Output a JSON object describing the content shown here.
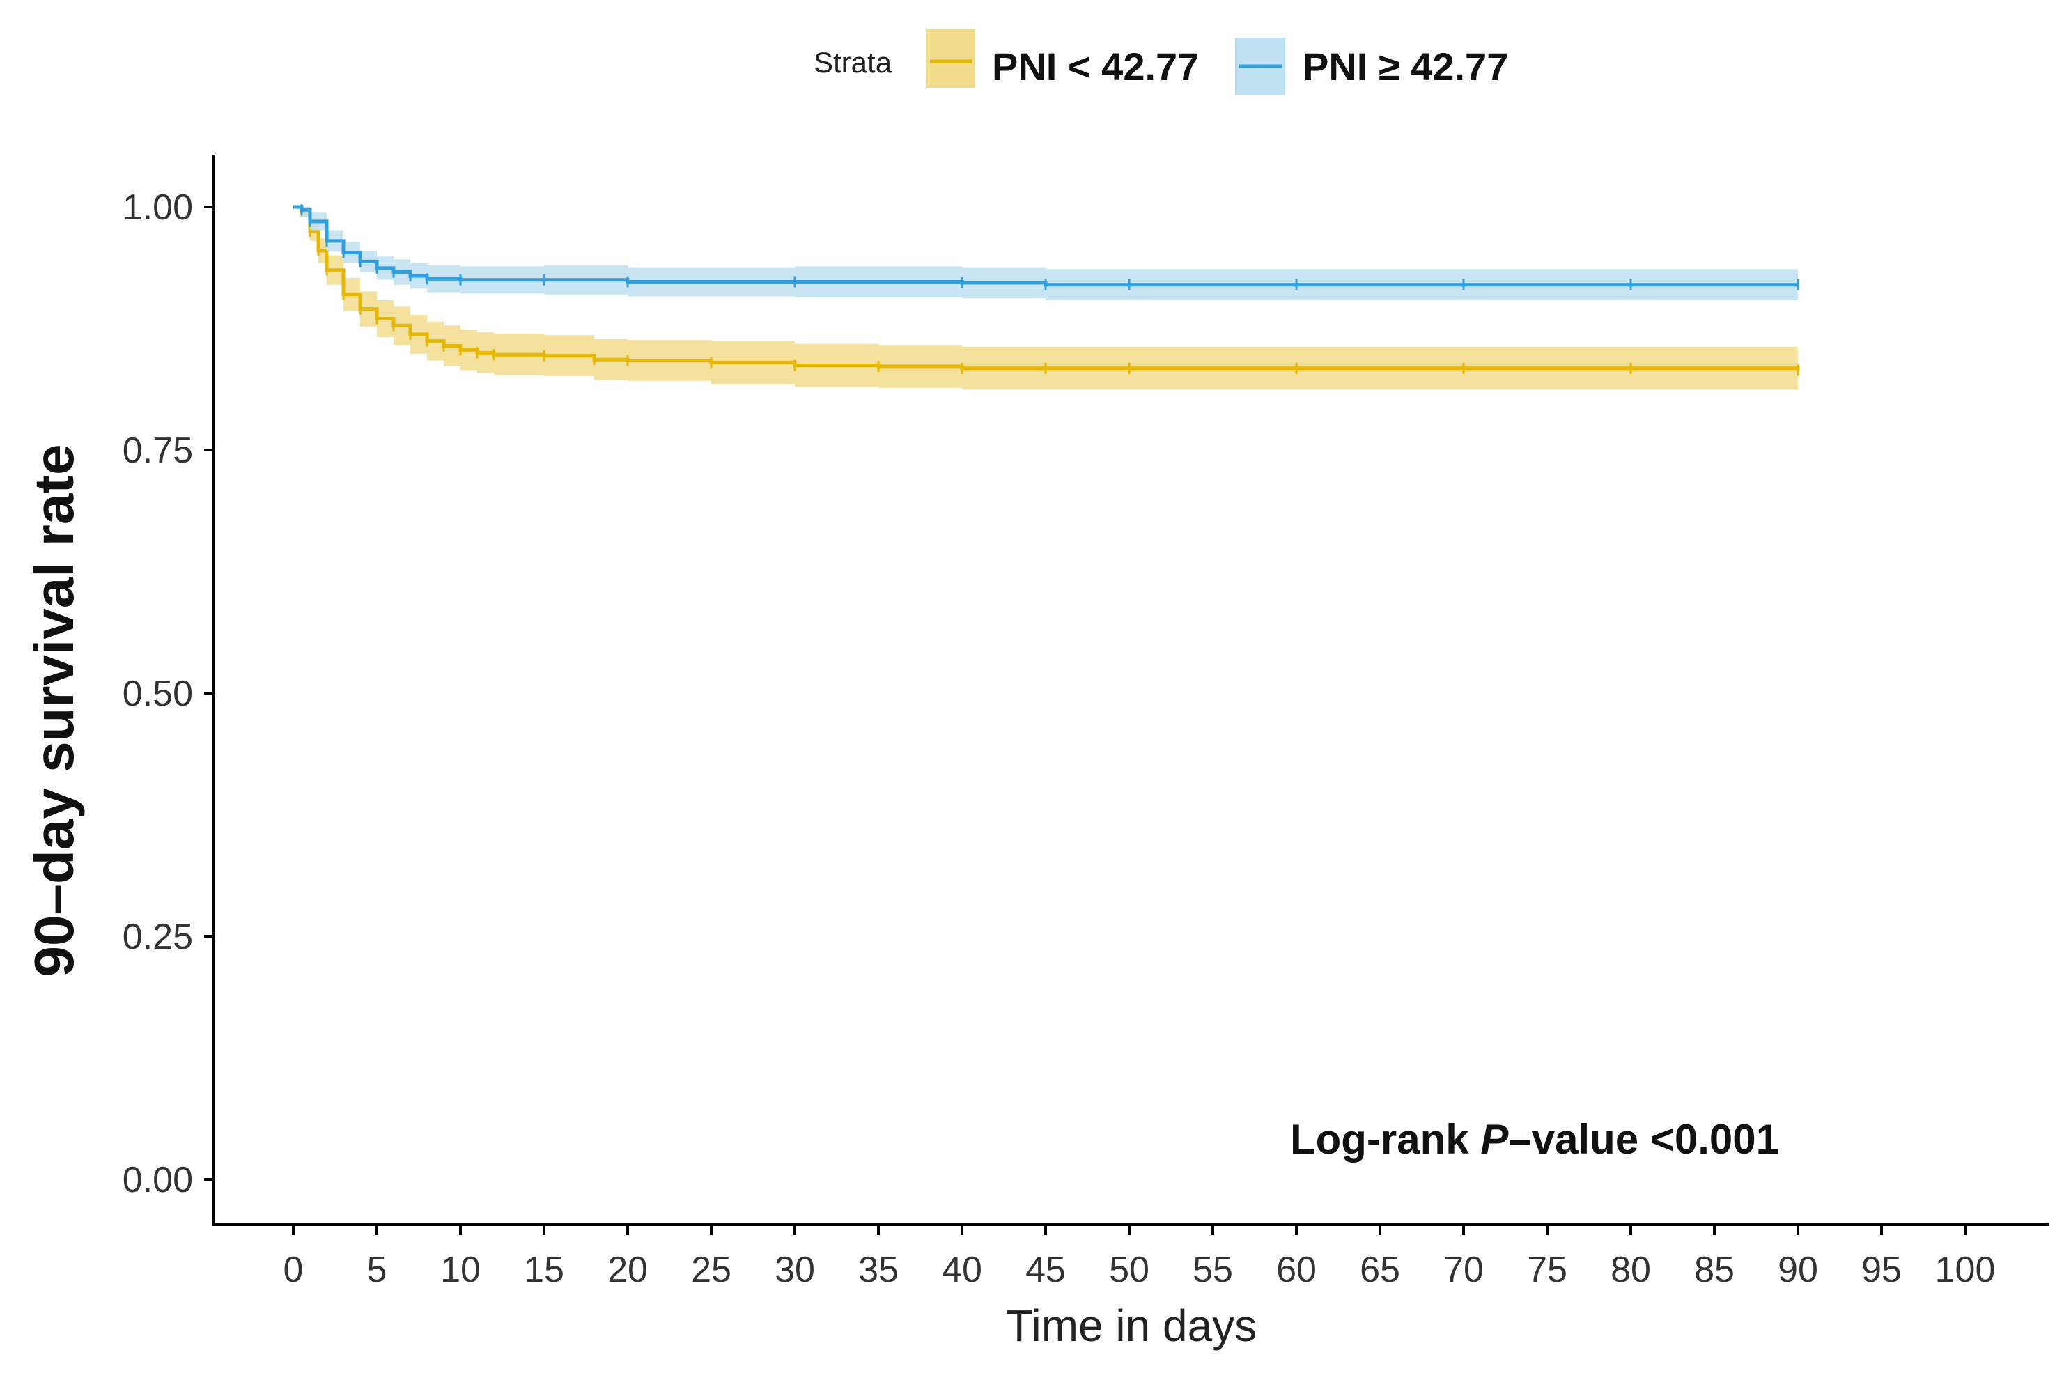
{
  "chart_data": {
    "type": "line",
    "subtype": "kaplan-meier",
    "title": "",
    "xlabel": "Time in days",
    "ylabel": "90–day survival rate",
    "xlim": [
      0,
      100
    ],
    "ylim": [
      0,
      1
    ],
    "x_ticks": [
      "0",
      "5",
      "10",
      "15",
      "20",
      "25",
      "30",
      "35",
      "40",
      "45",
      "50",
      "55",
      "60",
      "65",
      "70",
      "75",
      "80",
      "85",
      "90",
      "95",
      "100"
    ],
    "y_ticks": [
      "0.00",
      "0.25",
      "0.50",
      "0.75",
      "1.00"
    ],
    "legend": {
      "title": "Strata",
      "position": "top"
    },
    "annotation": {
      "prefix": "Log-rank ",
      "italic": "P",
      "suffix": "–value <0.001"
    },
    "series": [
      {
        "name": "PNI < 42.77",
        "color": "#E7B800",
        "band_color": "#F2DC8C",
        "x": [
          0,
          0.5,
          1,
          1.5,
          2,
          3,
          4,
          5,
          6,
          7,
          8,
          9,
          10,
          11,
          12,
          15,
          18,
          20,
          25,
          30,
          35,
          40,
          45,
          50,
          60,
          70,
          80,
          90
        ],
        "y": [
          1.0,
          0.995,
          0.975,
          0.955,
          0.935,
          0.91,
          0.895,
          0.885,
          0.878,
          0.869,
          0.862,
          0.857,
          0.853,
          0.85,
          0.848,
          0.847,
          0.843,
          0.842,
          0.84,
          0.837,
          0.836,
          0.834,
          0.834,
          0.834,
          0.834,
          0.834,
          0.834,
          0.832
        ],
        "lower": [
          1.0,
          0.99,
          0.965,
          0.942,
          0.92,
          0.893,
          0.877,
          0.866,
          0.858,
          0.849,
          0.842,
          0.836,
          0.832,
          0.829,
          0.827,
          0.826,
          0.822,
          0.821,
          0.818,
          0.815,
          0.814,
          0.812,
          0.812,
          0.812,
          0.812,
          0.812,
          0.812,
          0.81
        ],
        "upper": [
          1.0,
          1.0,
          0.985,
          0.968,
          0.95,
          0.927,
          0.913,
          0.904,
          0.898,
          0.889,
          0.882,
          0.878,
          0.874,
          0.871,
          0.869,
          0.868,
          0.864,
          0.863,
          0.862,
          0.859,
          0.858,
          0.856,
          0.856,
          0.856,
          0.856,
          0.856,
          0.856,
          0.854
        ]
      },
      {
        "name": "PNI ≥ 42.77",
        "color": "#2E9FDF",
        "band_color": "#BFE1F2",
        "x": [
          0,
          0.5,
          1,
          2,
          3,
          4,
          5,
          6,
          7,
          8,
          10,
          15,
          20,
          30,
          40,
          45,
          50,
          60,
          70,
          80,
          90
        ],
        "y": [
          1.0,
          0.997,
          0.985,
          0.965,
          0.953,
          0.944,
          0.937,
          0.933,
          0.929,
          0.926,
          0.925,
          0.925,
          0.923,
          0.923,
          0.922,
          0.92,
          0.92,
          0.92,
          0.92,
          0.92,
          0.92
        ],
        "lower": [
          1.0,
          0.99,
          0.976,
          0.954,
          0.942,
          0.933,
          0.925,
          0.92,
          0.916,
          0.912,
          0.911,
          0.91,
          0.908,
          0.907,
          0.906,
          0.904,
          0.904,
          0.904,
          0.904,
          0.904,
          0.904
        ],
        "upper": [
          1.0,
          1.0,
          0.994,
          0.976,
          0.964,
          0.955,
          0.949,
          0.946,
          0.942,
          0.94,
          0.939,
          0.94,
          0.938,
          0.939,
          0.938,
          0.936,
          0.936,
          0.936,
          0.936,
          0.936,
          0.936
        ]
      }
    ]
  }
}
